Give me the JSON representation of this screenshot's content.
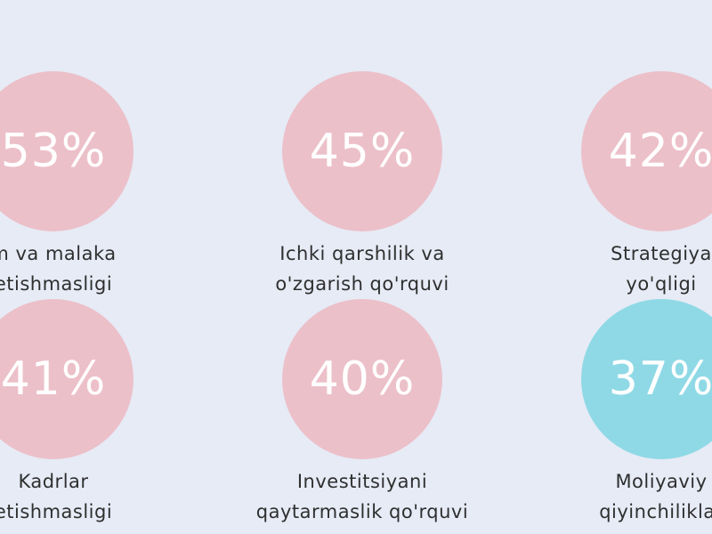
{
  "colors": {
    "background": "#e6ebf6",
    "pink_circle": "#ecc0c9",
    "cyan_circle": "#8fd9e6",
    "text_dark": "#2f2f2f",
    "text_light": "#ffffff"
  },
  "stats": [
    {
      "value": "53%",
      "line1": "m va malaka",
      "line2": "etishmasligi",
      "color": "pink"
    },
    {
      "value": "45%",
      "line1": "Ichki qarshilik va",
      "line2": "o'zgarish qo'rquvi",
      "color": "pink"
    },
    {
      "value": "42%",
      "line1": "Strategiya",
      "line2": "yo'qligi",
      "color": "pink"
    },
    {
      "value": "41%",
      "line1": "Kadrlar",
      "line2": "etishmasligi",
      "color": "pink"
    },
    {
      "value": "40%",
      "line1": "Investitsiyani",
      "line2": "qaytarmaslik qo'rquvi",
      "color": "pink"
    },
    {
      "value": "37%",
      "line1": "Moliyaviy",
      "line2": "qiyinchiliklar",
      "color": "cyan"
    }
  ]
}
